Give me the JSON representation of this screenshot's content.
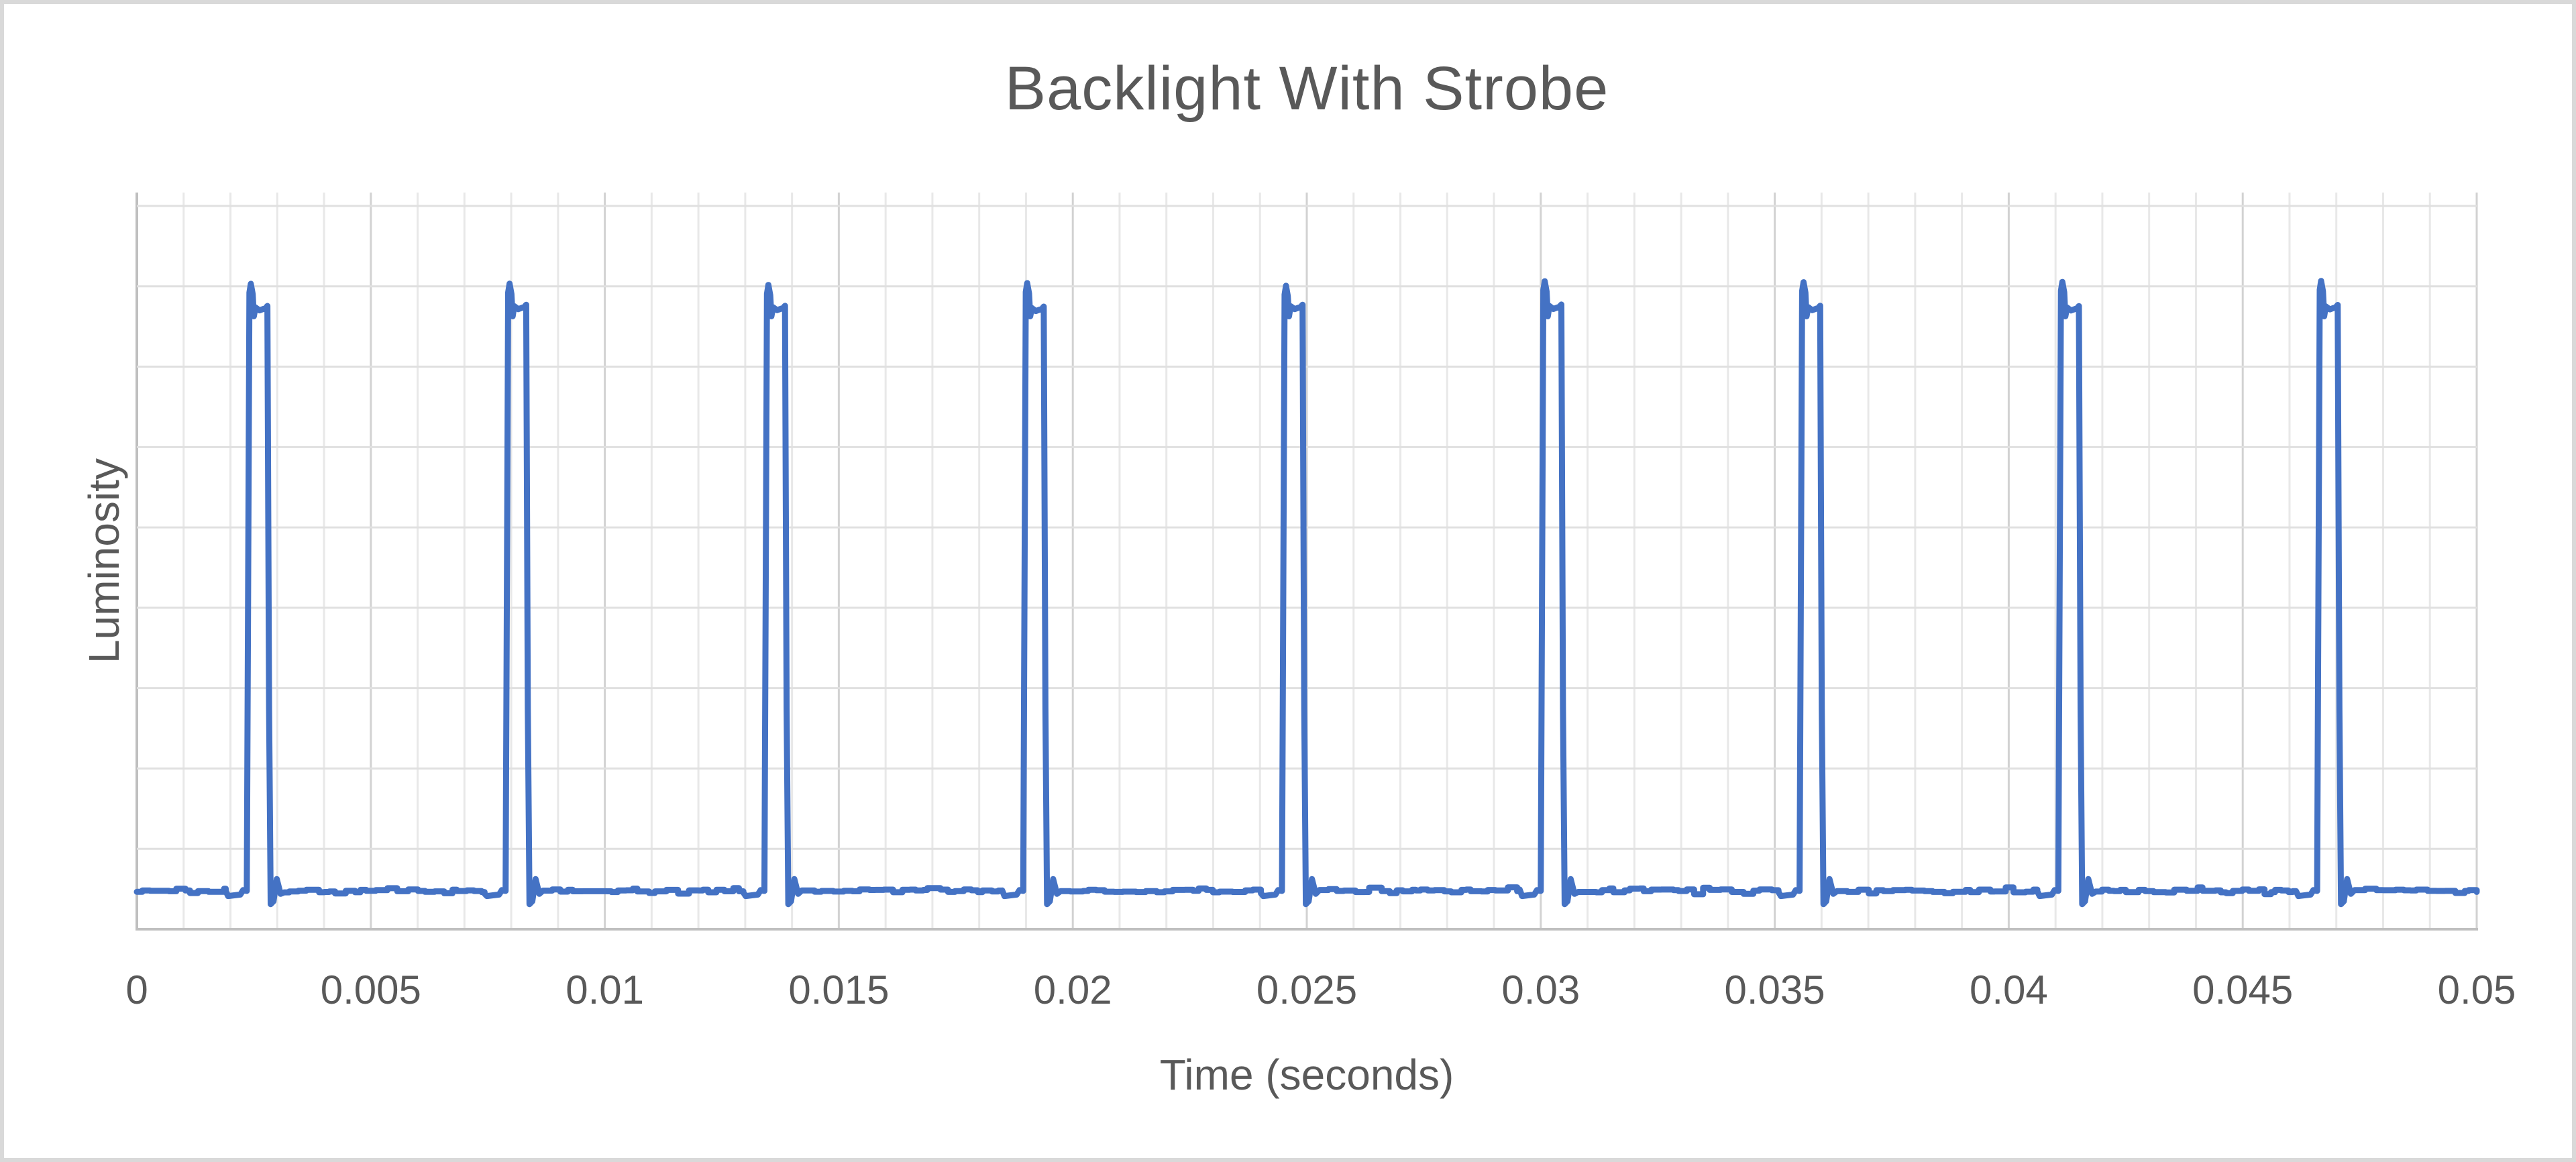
{
  "page": {
    "background": "#FFFFFF",
    "frame_border_color": "#D9D9D9"
  },
  "chart_data": {
    "type": "line",
    "title": "Backlight With Strobe",
    "xlabel": "Time (seconds)",
    "ylabel": "Luminosity",
    "xlim": [
      0,
      0.05
    ],
    "x_tick_labels": [
      "0",
      "0.005",
      "0.01",
      "0.015",
      "0.02",
      "0.025",
      "0.03",
      "0.035",
      "0.04",
      "0.045",
      "0.05"
    ],
    "x_minor_unit": 0.001,
    "x_major_unit": 0.005,
    "y_tick_labels_visible": false,
    "y_gridline_divisions": 9,
    "grid": "both",
    "legend": "none",
    "colors": {
      "series": "#4472C4",
      "title_text": "#595959",
      "axis_title_text": "#595959",
      "tick_text": "#595959",
      "minor_grid": "#E8E8E8",
      "major_grid": "#D2D2D2",
      "horizontal_grid": "#E0E0E0",
      "axis_line": "#BFBFBF"
    },
    "series": [
      {
        "name": "Luminosity",
        "shape": "pulse_train",
        "baseline_level": 0.052,
        "peak_level": 0.877,
        "shoulder_level": 0.841,
        "notch_level": 0.832,
        "undershoot_level": 0.034,
        "recovery_bump_level": 0.068,
        "pulse_start_times_s": [
          0.00235,
          0.00788,
          0.01341,
          0.01894,
          0.02447,
          0.03,
          0.03553,
          0.04106,
          0.04659
        ],
        "period_s": 0.00553,
        "pulse_width_s": 0.0005,
        "rise_time_s": 6e-05,
        "fall_time_s": 7e-05,
        "noise_level": 0.005
      }
    ]
  }
}
